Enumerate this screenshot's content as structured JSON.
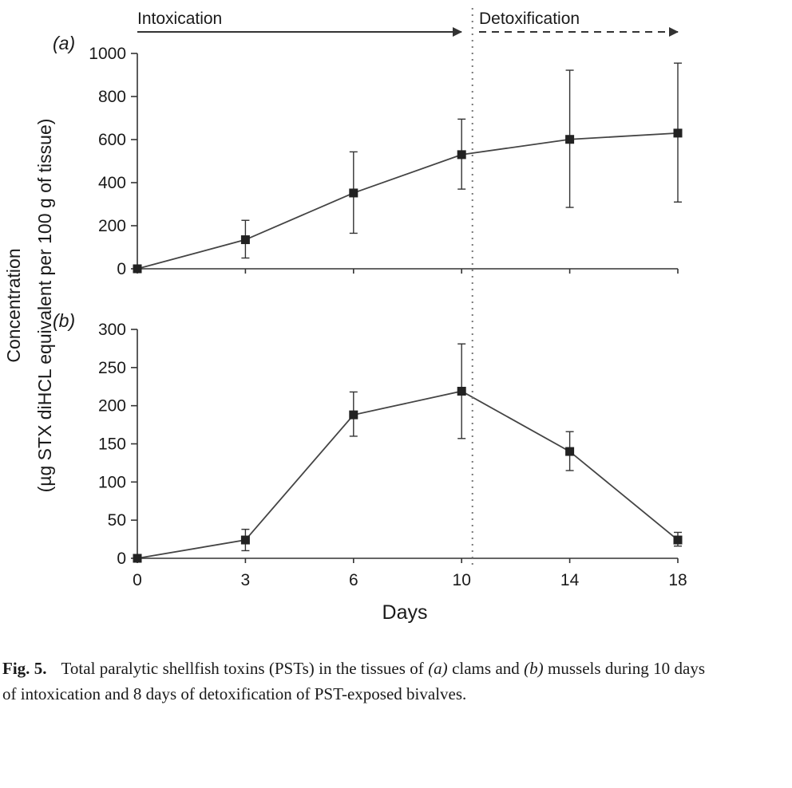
{
  "phases": {
    "intoxication": "Intoxication",
    "detoxification": "Detoxification"
  },
  "ylabel_line1": "Concentration",
  "ylabel_line2": "(µg STX diHCL equivalent per 100 g of tissue)",
  "chart_data": [
    {
      "type": "line",
      "panel_label": "(a)",
      "x": [
        0,
        3,
        6,
        10,
        14,
        18
      ],
      "xticklabels": [
        "0",
        "3",
        "6",
        "10",
        "14",
        "18"
      ],
      "series": [
        {
          "values": [
            0,
            135,
            352,
            530,
            601,
            630
          ],
          "error_low": [
            0,
            50,
            165,
            370,
            285,
            310
          ],
          "error_high": [
            0,
            225,
            543,
            695,
            922,
            955
          ]
        }
      ],
      "ylim": [
        0,
        1000
      ],
      "yticks": [
        0,
        200,
        400,
        600,
        800,
        1000
      ],
      "marker": "square",
      "grid": false
    },
    {
      "type": "line",
      "panel_label": "(b)",
      "x": [
        0,
        3,
        6,
        10,
        14,
        18
      ],
      "xticklabels": [
        "0",
        "3",
        "6",
        "10",
        "14",
        "18"
      ],
      "series": [
        {
          "values": [
            0,
            24,
            188,
            219,
            140,
            24
          ],
          "error_low": [
            0,
            10,
            160,
            157,
            115,
            16
          ],
          "error_high": [
            0,
            38,
            218,
            281,
            166,
            34
          ]
        }
      ],
      "ylim": [
        0,
        300
      ],
      "yticks": [
        0,
        50,
        100,
        150,
        200,
        250,
        300
      ],
      "xlabel": "Days",
      "marker": "square",
      "grid": false
    }
  ],
  "phase_boundary_day": 10.4,
  "caption": {
    "label": "Fig. 5.",
    "part1": "Total paralytic shellfish toxins (PSTs) in the tissues of",
    "a": "(a)",
    "part2": "clams and",
    "b": "(b)",
    "part3": "mussels during 10 days of intoxication and 8 days of detoxification of PST-exposed bivalves."
  }
}
